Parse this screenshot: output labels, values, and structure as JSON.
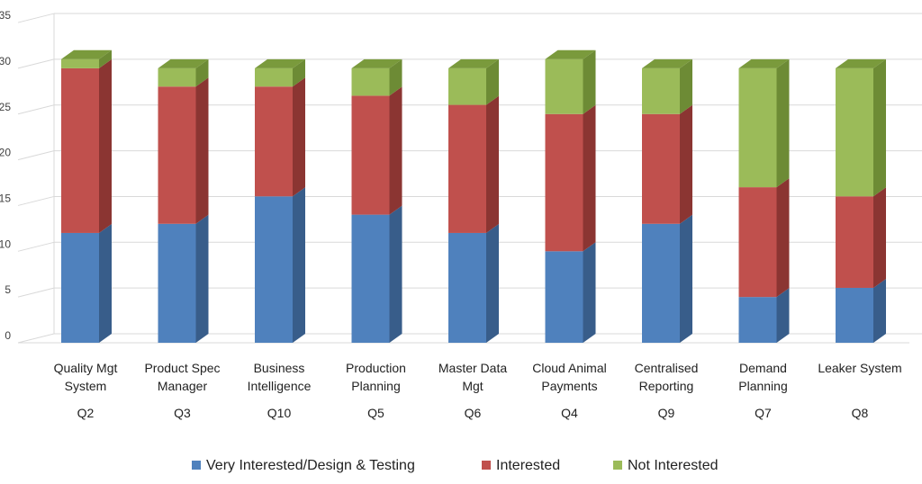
{
  "chart_data": {
    "type": "bar",
    "stacked": true,
    "style": "3d-stacked-column",
    "categories": [
      {
        "label": [
          "Quality Mgt",
          "System"
        ],
        "code": "Q2"
      },
      {
        "label": [
          "Product Spec",
          "Manager"
        ],
        "code": "Q3"
      },
      {
        "label": [
          "Business",
          "Intelligence"
        ],
        "code": "Q10"
      },
      {
        "label": [
          "Production",
          "Planning"
        ],
        "code": "Q5"
      },
      {
        "label": [
          "Master Data",
          "Mgt"
        ],
        "code": "Q6"
      },
      {
        "label": [
          "Cloud Animal",
          "Payments"
        ],
        "code": "Q4"
      },
      {
        "label": [
          "Centralised",
          "Reporting"
        ],
        "code": "Q9"
      },
      {
        "label": [
          "Demand",
          "Planning"
        ],
        "code": "Q7"
      },
      {
        "label": [
          "Leaker System"
        ],
        "code": "Q8"
      }
    ],
    "series": [
      {
        "name": "Very Interested/Design & Testing",
        "color": "#4f81bd",
        "side_color": "#385d8a",
        "top_color": "#6c97cf",
        "values": [
          12,
          13,
          16,
          14,
          12,
          10,
          13,
          5,
          6
        ]
      },
      {
        "name": "Interested",
        "color": "#c0504d",
        "side_color": "#8b3532",
        "top_color": "#cf6d6a",
        "values": [
          18,
          15,
          12,
          13,
          14,
          15,
          12,
          12,
          10
        ]
      },
      {
        "name": "Not Interested",
        "color": "#9bbb59",
        "side_color": "#6d8b35",
        "top_color": "#7a9a3c",
        "values": [
          1,
          2,
          2,
          3,
          4,
          6,
          5,
          13,
          14
        ]
      }
    ],
    "yticks": [
      0,
      5,
      10,
      15,
      20,
      25,
      30,
      35
    ],
    "ylim": [
      0,
      35
    ],
    "grid": true,
    "legend_position": "bottom",
    "title": "",
    "xlabel": "",
    "ylabel": ""
  }
}
